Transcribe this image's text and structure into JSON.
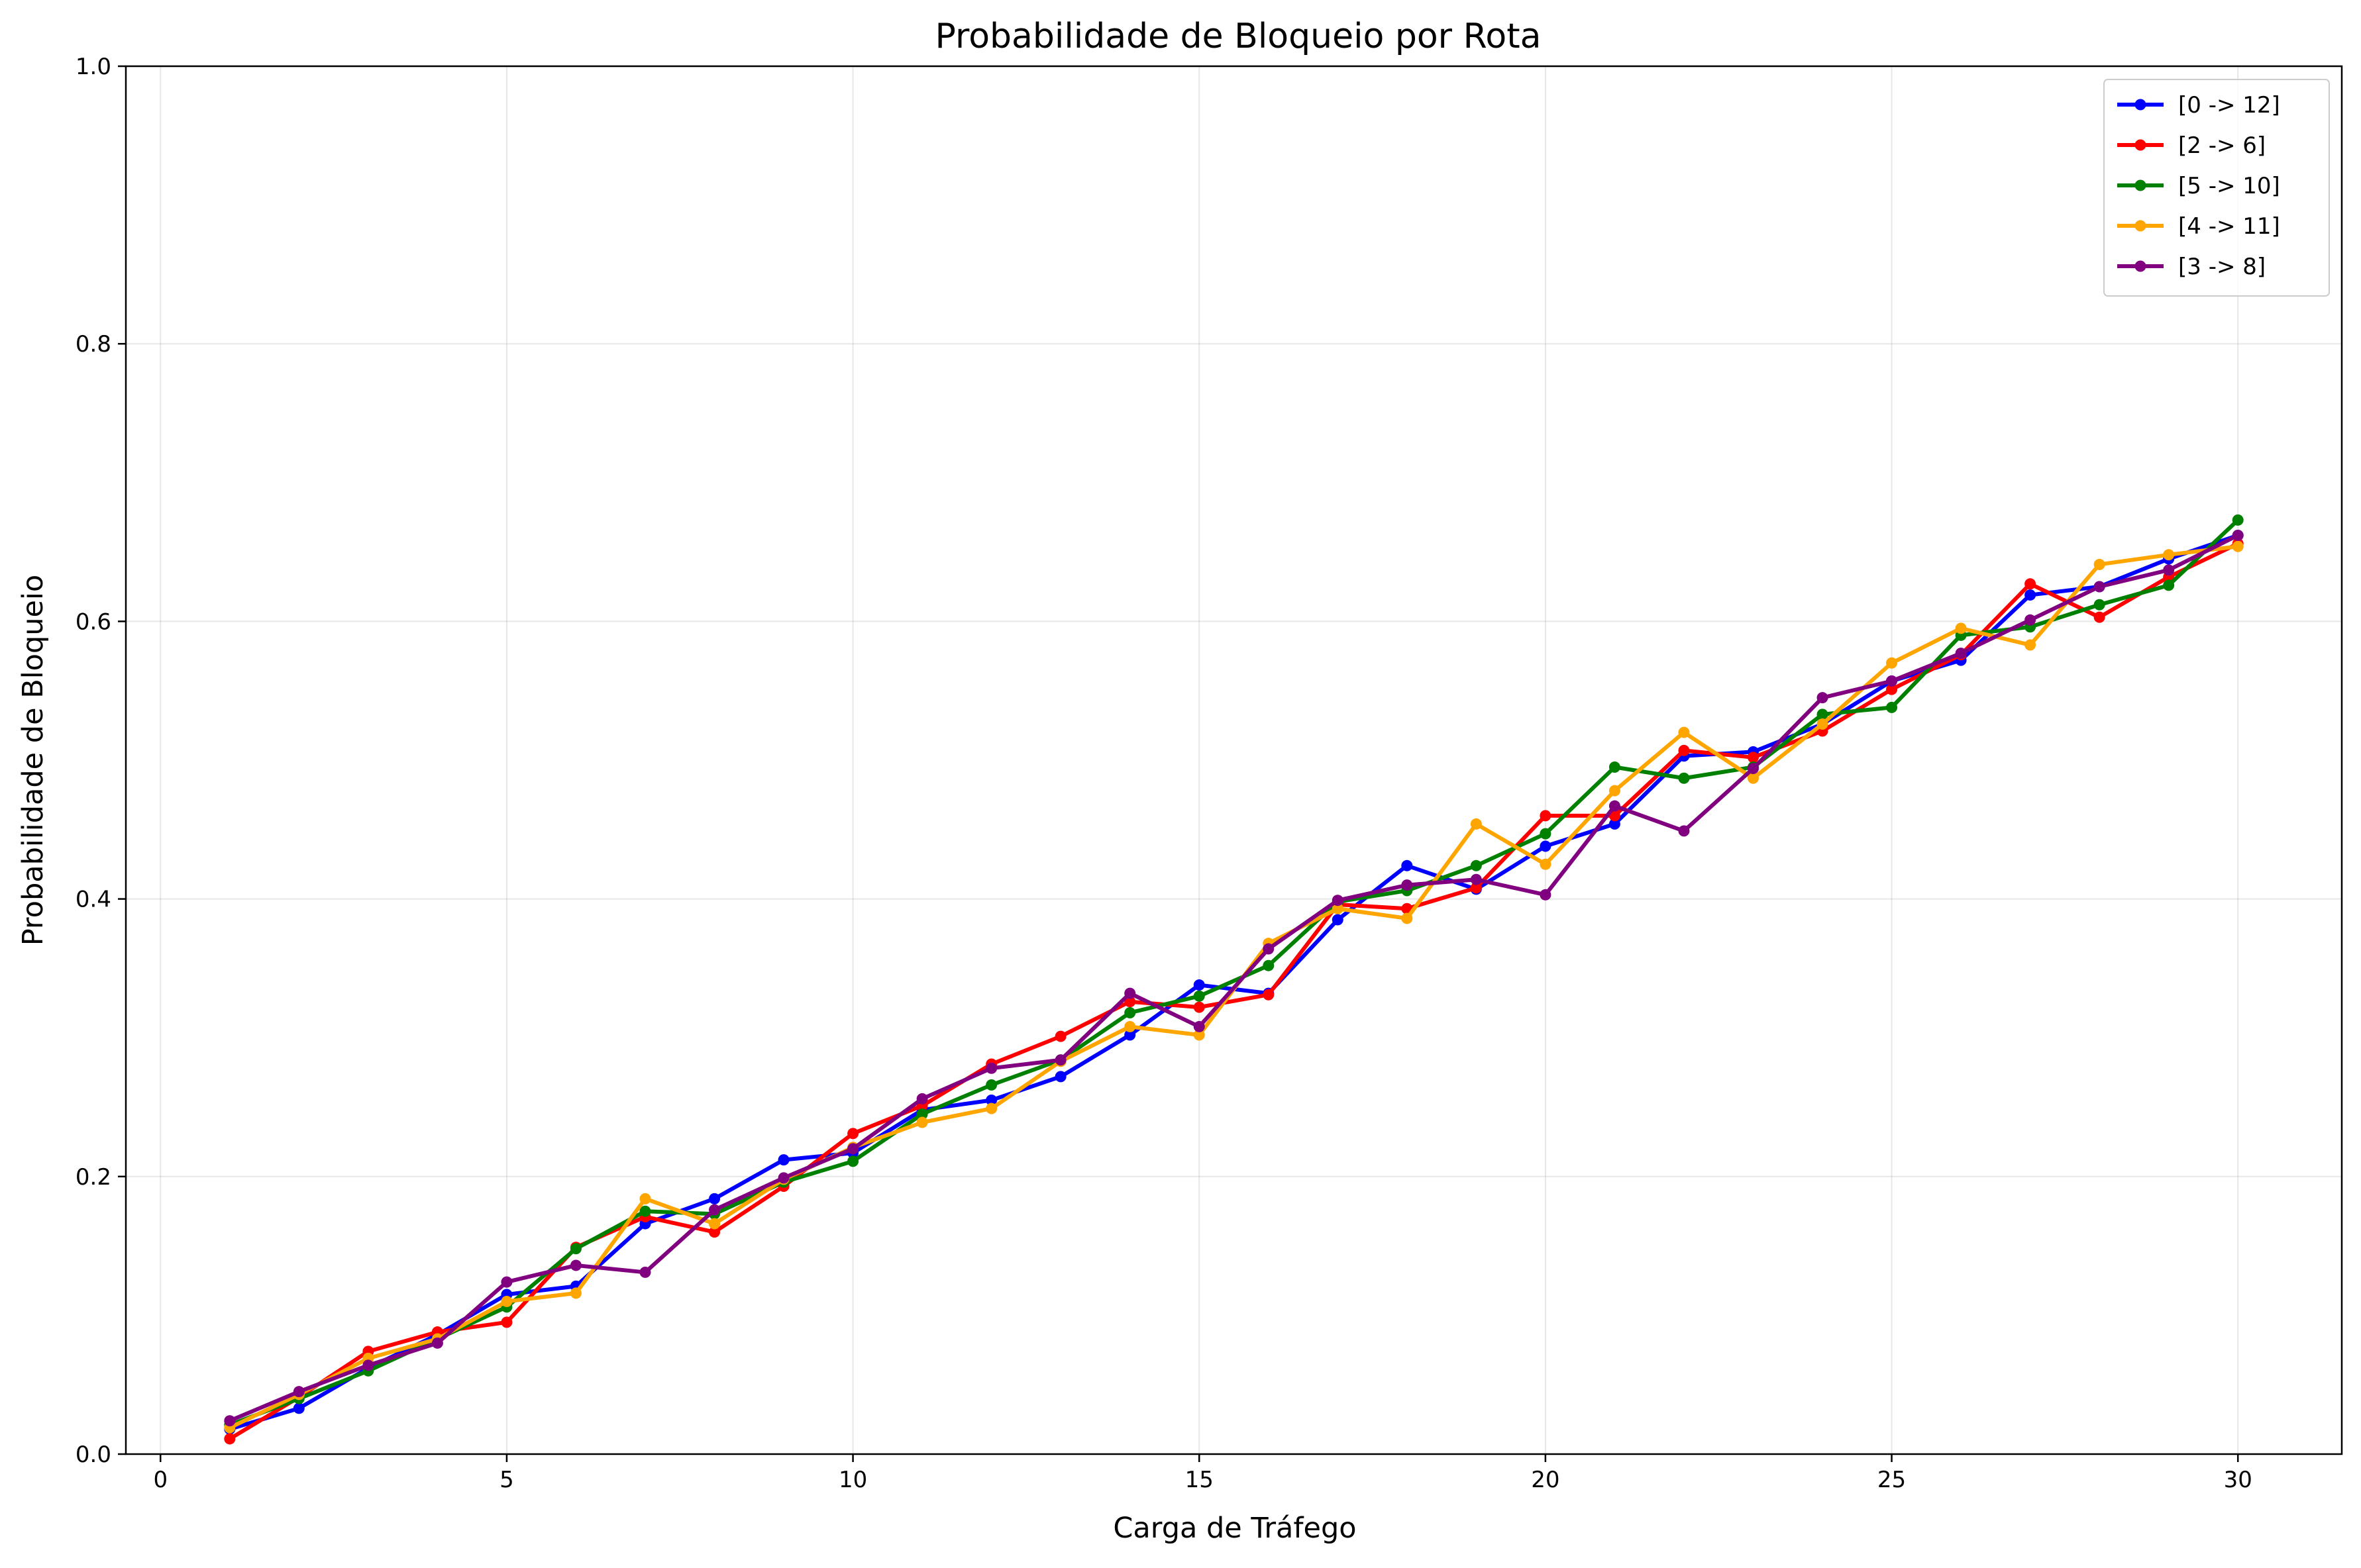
{
  "chart_data": {
    "type": "line",
    "title": "Probabilidade de Bloqueio por Rota",
    "xlabel": "Carga de Tráfego",
    "ylabel": "Probabilidade de Bloqueio",
    "xlim": [
      -0.5,
      31.5
    ],
    "ylim": [
      0.0,
      1.0
    ],
    "xticks": [
      0,
      5,
      10,
      15,
      20,
      25,
      30
    ],
    "xtick_labels": [
      "0",
      "5",
      "10",
      "15",
      "20",
      "25",
      "30"
    ],
    "yticks": [
      0.0,
      0.2,
      0.4,
      0.6,
      0.8,
      1.0
    ],
    "ytick_labels": [
      "0.0",
      "0.2",
      "0.4",
      "0.6",
      "0.8",
      "1.0"
    ],
    "grid": true,
    "legend_position": "top-right",
    "x": [
      1,
      2,
      3,
      4,
      5,
      6,
      7,
      8,
      9,
      10,
      11,
      12,
      13,
      14,
      15,
      16,
      17,
      18,
      19,
      20,
      21,
      22,
      23,
      24,
      25,
      26,
      27,
      28,
      29,
      30
    ],
    "series": [
      {
        "name": "[0 -> 12]",
        "color": "#0000ff",
        "values": [
          0.018,
          0.033,
          0.062,
          0.086,
          0.115,
          0.121,
          0.166,
          0.184,
          0.212,
          0.217,
          0.248,
          0.255,
          0.272,
          0.302,
          0.338,
          0.332,
          0.385,
          0.424,
          0.407,
          0.438,
          0.454,
          0.503,
          0.506,
          0.526,
          0.557,
          0.572,
          0.619,
          0.625,
          0.645,
          0.662
        ]
      },
      {
        "name": "[2 -> 6]",
        "color": "#ff0000",
        "values": [
          0.011,
          0.041,
          0.074,
          0.088,
          0.095,
          0.149,
          0.171,
          0.16,
          0.193,
          0.231,
          0.251,
          0.281,
          0.301,
          0.326,
          0.322,
          0.331,
          0.396,
          0.393,
          0.408,
          0.46,
          0.46,
          0.507,
          0.502,
          0.521,
          0.551,
          0.576,
          0.627,
          0.603,
          0.632,
          0.656
        ]
      },
      {
        "name": "[5 -> 10]",
        "color": "#008000",
        "values": [
          0.021,
          0.04,
          0.06,
          0.083,
          0.106,
          0.148,
          0.175,
          0.173,
          0.196,
          0.211,
          0.245,
          0.266,
          0.284,
          0.318,
          0.33,
          0.352,
          0.398,
          0.406,
          0.424,
          0.447,
          0.495,
          0.487,
          0.495,
          0.533,
          0.538,
          0.59,
          0.596,
          0.612,
          0.626,
          0.673
        ]
      },
      {
        "name": "[4 -> 11]",
        "color": "#ffa500",
        "values": [
          0.019,
          0.043,
          0.069,
          0.083,
          0.11,
          0.116,
          0.184,
          0.166,
          0.198,
          0.221,
          0.239,
          0.249,
          0.283,
          0.308,
          0.302,
          0.368,
          0.393,
          0.386,
          0.454,
          0.425,
          0.478,
          0.52,
          0.487,
          0.526,
          0.57,
          0.595,
          0.583,
          0.641,
          0.648,
          0.654
        ]
      },
      {
        "name": "[3 -> 8]",
        "color": "#800080",
        "values": [
          0.024,
          0.045,
          0.064,
          0.08,
          0.124,
          0.136,
          0.131,
          0.176,
          0.199,
          0.22,
          0.256,
          0.278,
          0.284,
          0.332,
          0.308,
          0.364,
          0.399,
          0.41,
          0.414,
          0.403,
          0.467,
          0.449,
          0.494,
          0.545,
          0.557,
          0.577,
          0.601,
          0.625,
          0.637,
          0.662
        ]
      }
    ]
  }
}
